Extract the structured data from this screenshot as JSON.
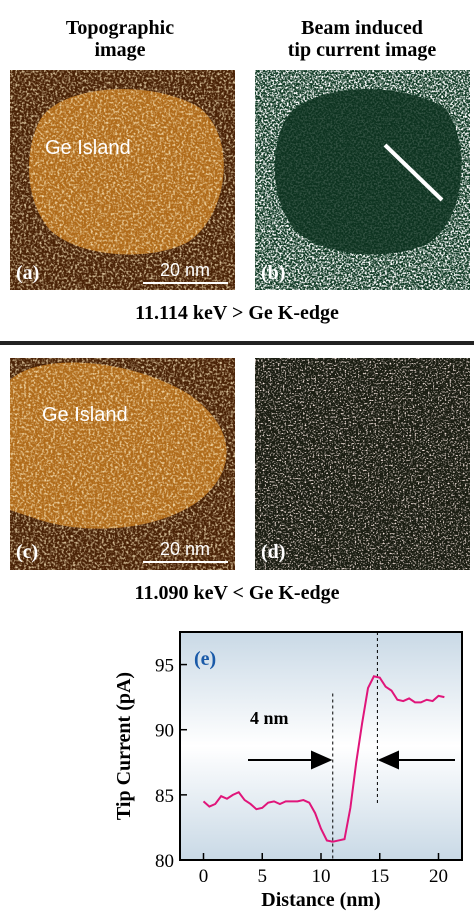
{
  "headers": [
    [
      "Topographic",
      "image"
    ],
    [
      "Beam induced",
      "tip current image"
    ]
  ],
  "panels": [
    {
      "label": "(a)",
      "island": "Ge Island",
      "scale": "20 nm"
    },
    {
      "label": "(b)"
    },
    {
      "label": "(c)",
      "island": "Ge Island",
      "scale": "20 nm"
    },
    {
      "label": "(d)"
    }
  ],
  "captions": [
    "11.114 keV > Ge K-edge",
    "11.090 keV < Ge K-edge"
  ],
  "chart_data": {
    "type": "line",
    "panel_label": "(e)",
    "annotation": "4 nm",
    "xlabel": "Distance (nm)",
    "ylabel": "Tip Current (pA)",
    "x": [
      0,
      0.5,
      1,
      1.5,
      2,
      2.5,
      3,
      3.5,
      4,
      4.5,
      5,
      5.5,
      6,
      6.5,
      7,
      7.5,
      8,
      8.5,
      9,
      9.5,
      10,
      10.5,
      11,
      11.5,
      12,
      12.5,
      13,
      13.5,
      14,
      14.5,
      15,
      15.5,
      16,
      16.5,
      17,
      17.5,
      18,
      18.5,
      19,
      19.5,
      20,
      20.5
    ],
    "values": [
      84.5,
      84.1,
      84.3,
      84.9,
      84.7,
      85.0,
      85.2,
      84.6,
      84.3,
      83.9,
      84.0,
      84.4,
      84.5,
      84.3,
      84.5,
      84.5,
      84.5,
      84.6,
      84.4,
      83.6,
      82.4,
      81.5,
      81.4,
      81.5,
      81.6,
      84.0,
      87.5,
      90.5,
      93.2,
      94.1,
      94.0,
      93.3,
      93.0,
      92.3,
      92.2,
      92.4,
      92.1,
      92.1,
      92.3,
      92.2,
      92.6,
      92.5
    ],
    "color": "#e0157a",
    "vlines": [
      11,
      14.8
    ],
    "xlim": [
      -2,
      22
    ],
    "ylim": [
      80,
      97.5
    ],
    "xticks": [
      0,
      5,
      10,
      15,
      20
    ],
    "yticks": [
      80,
      85,
      90,
      95
    ]
  }
}
